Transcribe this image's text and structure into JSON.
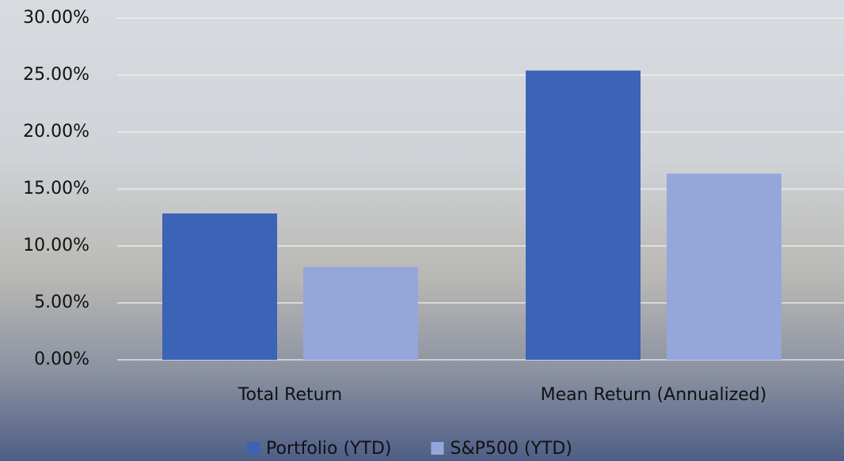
{
  "chart_data": {
    "type": "bar",
    "categories": [
      "Total Return",
      "Mean Return (Annualized)"
    ],
    "series": [
      {
        "name": "Portfolio (YTD)",
        "color": "#3b63b6",
        "values": [
          12.85,
          25.4
        ]
      },
      {
        "name": "S&P500 (YTD)",
        "color": "#95a7da",
        "values": [
          8.15,
          16.35
        ]
      }
    ],
    "ylim": [
      0,
      30
    ],
    "yticks": [
      {
        "value": 0,
        "label": "0.00%"
      },
      {
        "value": 5,
        "label": "5.00%"
      },
      {
        "value": 10,
        "label": "10.00%"
      },
      {
        "value": 15,
        "label": "15.00%"
      },
      {
        "value": 20,
        "label": "20.00%"
      },
      {
        "value": 25,
        "label": "25.00%"
      },
      {
        "value": 30,
        "label": "30.00%"
      }
    ],
    "grid": true,
    "legend": "bottom"
  }
}
